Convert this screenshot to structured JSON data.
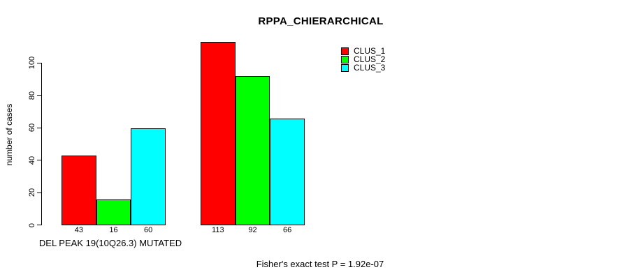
{
  "chart_data": {
    "type": "bar",
    "title": "RPPA_CHIERARCHICAL",
    "ylabel": "number of cases",
    "xlabel": "DEL PEAK 19(10Q26.3) MUTATED",
    "annotation": "Fisher's exact test P = 1.92e-07",
    "ylim": [
      0,
      116
    ],
    "yticks": [
      0,
      20,
      40,
      60,
      80,
      100
    ],
    "grid": false,
    "legend_position": "top-right",
    "background": "#ffffff",
    "axis_color": "#000000",
    "categories": [
      "DEL PEAK 19(10Q26.3) MUTATED",
      ""
    ],
    "series": [
      {
        "name": "CLUS_1",
        "color": "#ff0000",
        "values": [
          43,
          113
        ]
      },
      {
        "name": "CLUS_2",
        "color": "#00ff00",
        "values": [
          16,
          92
        ]
      },
      {
        "name": "CLUS_3",
        "color": "#00ffff",
        "values": [
          60,
          66
        ]
      }
    ],
    "bar_value_labels_visible": true
  }
}
